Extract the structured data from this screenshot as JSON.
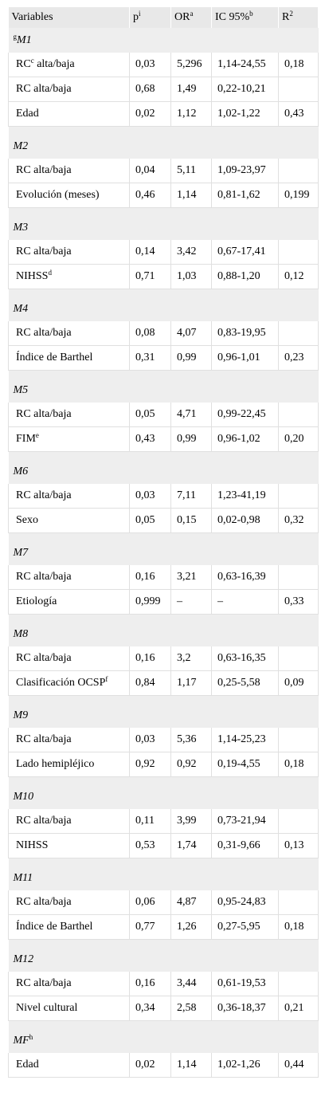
{
  "headers": [
    {
      "text": "Variables",
      "sup": ""
    },
    {
      "text": "p",
      "sup": "i"
    },
    {
      "text": "OR",
      "sup": "a"
    },
    {
      "text": "IC 95%",
      "sup": "b"
    },
    {
      "text": "R",
      "sup": "2"
    }
  ],
  "groups": [
    {
      "pre": "g",
      "title": "M1",
      "post": "",
      "rows": [
        {
          "var": "RC",
          "sup": "c",
          "tail": " alta/baja",
          "p": "0,03",
          "or": "5,296",
          "ic": "1,14-24,55",
          "r2": "0,18"
        },
        {
          "var": "RC alta/baja",
          "sup": "",
          "tail": "",
          "p": "0,68",
          "or": "1,49",
          "ic": "0,22-10,21",
          "r2": ""
        },
        {
          "var": "Edad",
          "sup": "",
          "tail": "",
          "p": "0,02",
          "or": "1,12",
          "ic": "1,02-1,22",
          "r2": "0,43"
        }
      ]
    },
    {
      "pre": "",
      "title": "M2",
      "post": "",
      "rows": [
        {
          "var": "RC alta/baja",
          "sup": "",
          "tail": "",
          "p": "0,04",
          "or": "5,11",
          "ic": "1,09-23,97",
          "r2": ""
        },
        {
          "var": "Evolución (meses)",
          "sup": "",
          "tail": "",
          "p": "0,46",
          "or": "1,14",
          "ic": "0,81-1,62",
          "r2": "0,199"
        }
      ]
    },
    {
      "pre": "",
      "title": "M3",
      "post": "",
      "rows": [
        {
          "var": "RC alta/baja",
          "sup": "",
          "tail": "",
          "p": "0,14",
          "or": "3,42",
          "ic": "0,67-17,41",
          "r2": ""
        },
        {
          "var": "NIHSS",
          "sup": "d",
          "tail": "",
          "p": "0,71",
          "or": "1,03",
          "ic": "0,88-1,20",
          "r2": "0,12"
        }
      ]
    },
    {
      "pre": "",
      "title": "M4",
      "post": "",
      "rows": [
        {
          "var": "RC alta/baja",
          "sup": "",
          "tail": "",
          "p": "0,08",
          "or": "4,07",
          "ic": "0,83-19,95",
          "r2": ""
        },
        {
          "var": "Índice de Barthel",
          "sup": "",
          "tail": "",
          "p": "0,31",
          "or": "0,99",
          "ic": "0,96-1,01",
          "r2": "0,23"
        }
      ]
    },
    {
      "pre": "",
      "title": "M5",
      "post": "",
      "rows": [
        {
          "var": "RC alta/baja",
          "sup": "",
          "tail": "",
          "p": "0,05",
          "or": "4,71",
          "ic": "0,99-22,45",
          "r2": ""
        },
        {
          "var": "FIM",
          "sup": "e",
          "tail": "",
          "p": "0,43",
          "or": "0,99",
          "ic": "0,96-1,02",
          "r2": "0,20"
        }
      ]
    },
    {
      "pre": "",
      "title": "M6",
      "post": "",
      "rows": [
        {
          "var": "RC alta/baja",
          "sup": "",
          "tail": "",
          "p": "0,03",
          "or": "7,11",
          "ic": "1,23-41,19",
          "r2": ""
        },
        {
          "var": "Sexo",
          "sup": "",
          "tail": "",
          "p": "0,05",
          "or": "0,15",
          "ic": "0,02-0,98",
          "r2": "0,32"
        }
      ]
    },
    {
      "pre": "",
      "title": "M7",
      "post": "",
      "rows": [
        {
          "var": "RC alta/baja",
          "sup": "",
          "tail": "",
          "p": "0,16",
          "or": "3,21",
          "ic": "0,63-16,39",
          "r2": ""
        },
        {
          "var": "Etiología",
          "sup": "",
          "tail": "",
          "p": "0,999",
          "or": "–",
          "ic": "–",
          "r2": "0,33"
        }
      ]
    },
    {
      "pre": "",
      "title": "M8",
      "post": "",
      "rows": [
        {
          "var": "RC alta/baja",
          "sup": "",
          "tail": "",
          "p": "0,16",
          "or": "3,2",
          "ic": "0,63-16,35",
          "r2": ""
        },
        {
          "var": "Clasificación OCSP",
          "sup": "f",
          "tail": "",
          "p": "0,84",
          "or": "1,17",
          "ic": "0,25-5,58",
          "r2": "0,09"
        }
      ]
    },
    {
      "pre": "",
      "title": "M9",
      "post": "",
      "rows": [
        {
          "var": "RC alta/baja",
          "sup": "",
          "tail": "",
          "p": "0,03",
          "or": "5,36",
          "ic": "1,14-25,23",
          "r2": ""
        },
        {
          "var": "Lado hemipléjico",
          "sup": "",
          "tail": "",
          "p": "0,92",
          "or": "0,92",
          "ic": "0,19-4,55",
          "r2": "0,18"
        }
      ]
    },
    {
      "pre": "",
      "title": "M10",
      "post": "",
      "rows": [
        {
          "var": "RC alta/baja",
          "sup": "",
          "tail": "",
          "p": "0,11",
          "or": "3,99",
          "ic": "0,73-21,94",
          "r2": ""
        },
        {
          "var": "NIHSS",
          "sup": "",
          "tail": "",
          "p": "0,53",
          "or": "1,74",
          "ic": "0,31-9,66",
          "r2": "0,13"
        }
      ]
    },
    {
      "pre": "",
      "title": "M11",
      "post": "",
      "rows": [
        {
          "var": "RC alta/baja",
          "sup": "",
          "tail": "",
          "p": "0,06",
          "or": "4,87",
          "ic": "0,95-24,83",
          "r2": ""
        },
        {
          "var": "Índice de Barthel",
          "sup": "",
          "tail": "",
          "p": "0,77",
          "or": "1,26",
          "ic": "0,27-5,95",
          "r2": "0,18"
        }
      ]
    },
    {
      "pre": "",
      "title": "M12",
      "post": "",
      "rows": [
        {
          "var": "RC alta/baja",
          "sup": "",
          "tail": "",
          "p": "0,16",
          "or": "3,44",
          "ic": "0,61-19,53",
          "r2": ""
        },
        {
          "var": "Nivel cultural",
          "sup": "",
          "tail": "",
          "p": "0,34",
          "or": "2,58",
          "ic": "0,36-18,37",
          "r2": "0,21"
        }
      ]
    },
    {
      "pre": "",
      "title": "MF",
      "post": "h",
      "rows": [
        {
          "var": "Edad",
          "sup": "",
          "tail": "",
          "p": "0,02",
          "or": "1,14",
          "ic": "1,02-1,26",
          "r2": "0,44"
        }
      ]
    }
  ]
}
